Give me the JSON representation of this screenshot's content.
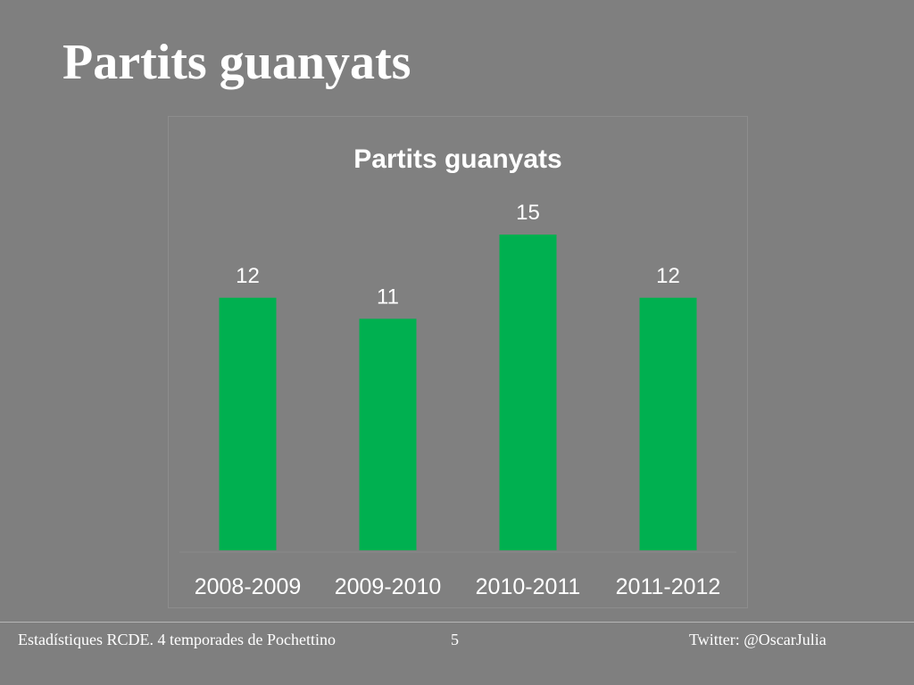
{
  "slide": {
    "title": "Partits guanyats"
  },
  "footer": {
    "left": "Estadístiques RCDE. 4 temporades de Pochettino",
    "page": "5",
    "right": "Twitter: @OscarJulia"
  },
  "colors": {
    "background": "#7f7f7f",
    "bar": "#00b050",
    "text": "#ffffff"
  },
  "chart_data": {
    "type": "bar",
    "title": "Partits guanyats",
    "categories": [
      "2008-2009",
      "2009-2010",
      "2010-2011",
      "2011-2012"
    ],
    "values": [
      12,
      11,
      15,
      12
    ],
    "data_labels": [
      "12",
      "11",
      "15",
      "12"
    ],
    "xlabel": "",
    "ylabel": "",
    "ylim": [
      0,
      15
    ],
    "grid": false,
    "legend": "none"
  }
}
